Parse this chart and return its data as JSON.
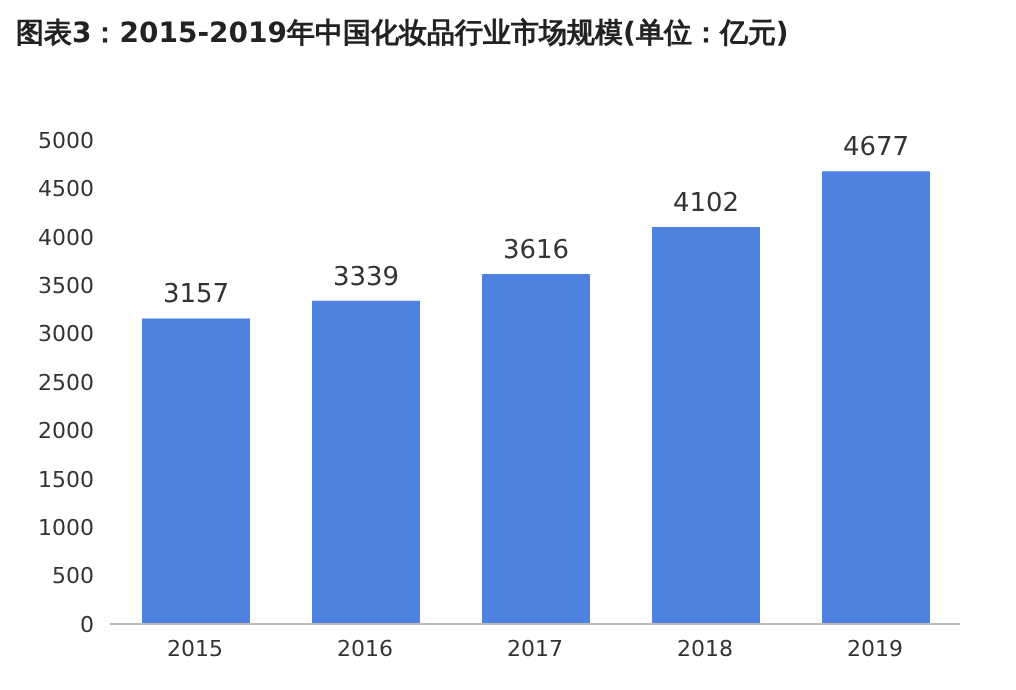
{
  "chart_data": {
    "type": "bar",
    "title": "图表3：2015-2019年中国化妆品行业市场规模(单位：亿元)",
    "categories": [
      "2015",
      "2016",
      "2017",
      "2018",
      "2019"
    ],
    "values": [
      3157,
      3339,
      3616,
      4102,
      4677
    ],
    "color": "#4f81e0",
    "ylim": [
      0,
      5000
    ],
    "yticks": [
      0,
      500,
      1000,
      1500,
      2000,
      2500,
      3000,
      3500,
      4000,
      4500,
      5000
    ],
    "data_labels": true
  }
}
